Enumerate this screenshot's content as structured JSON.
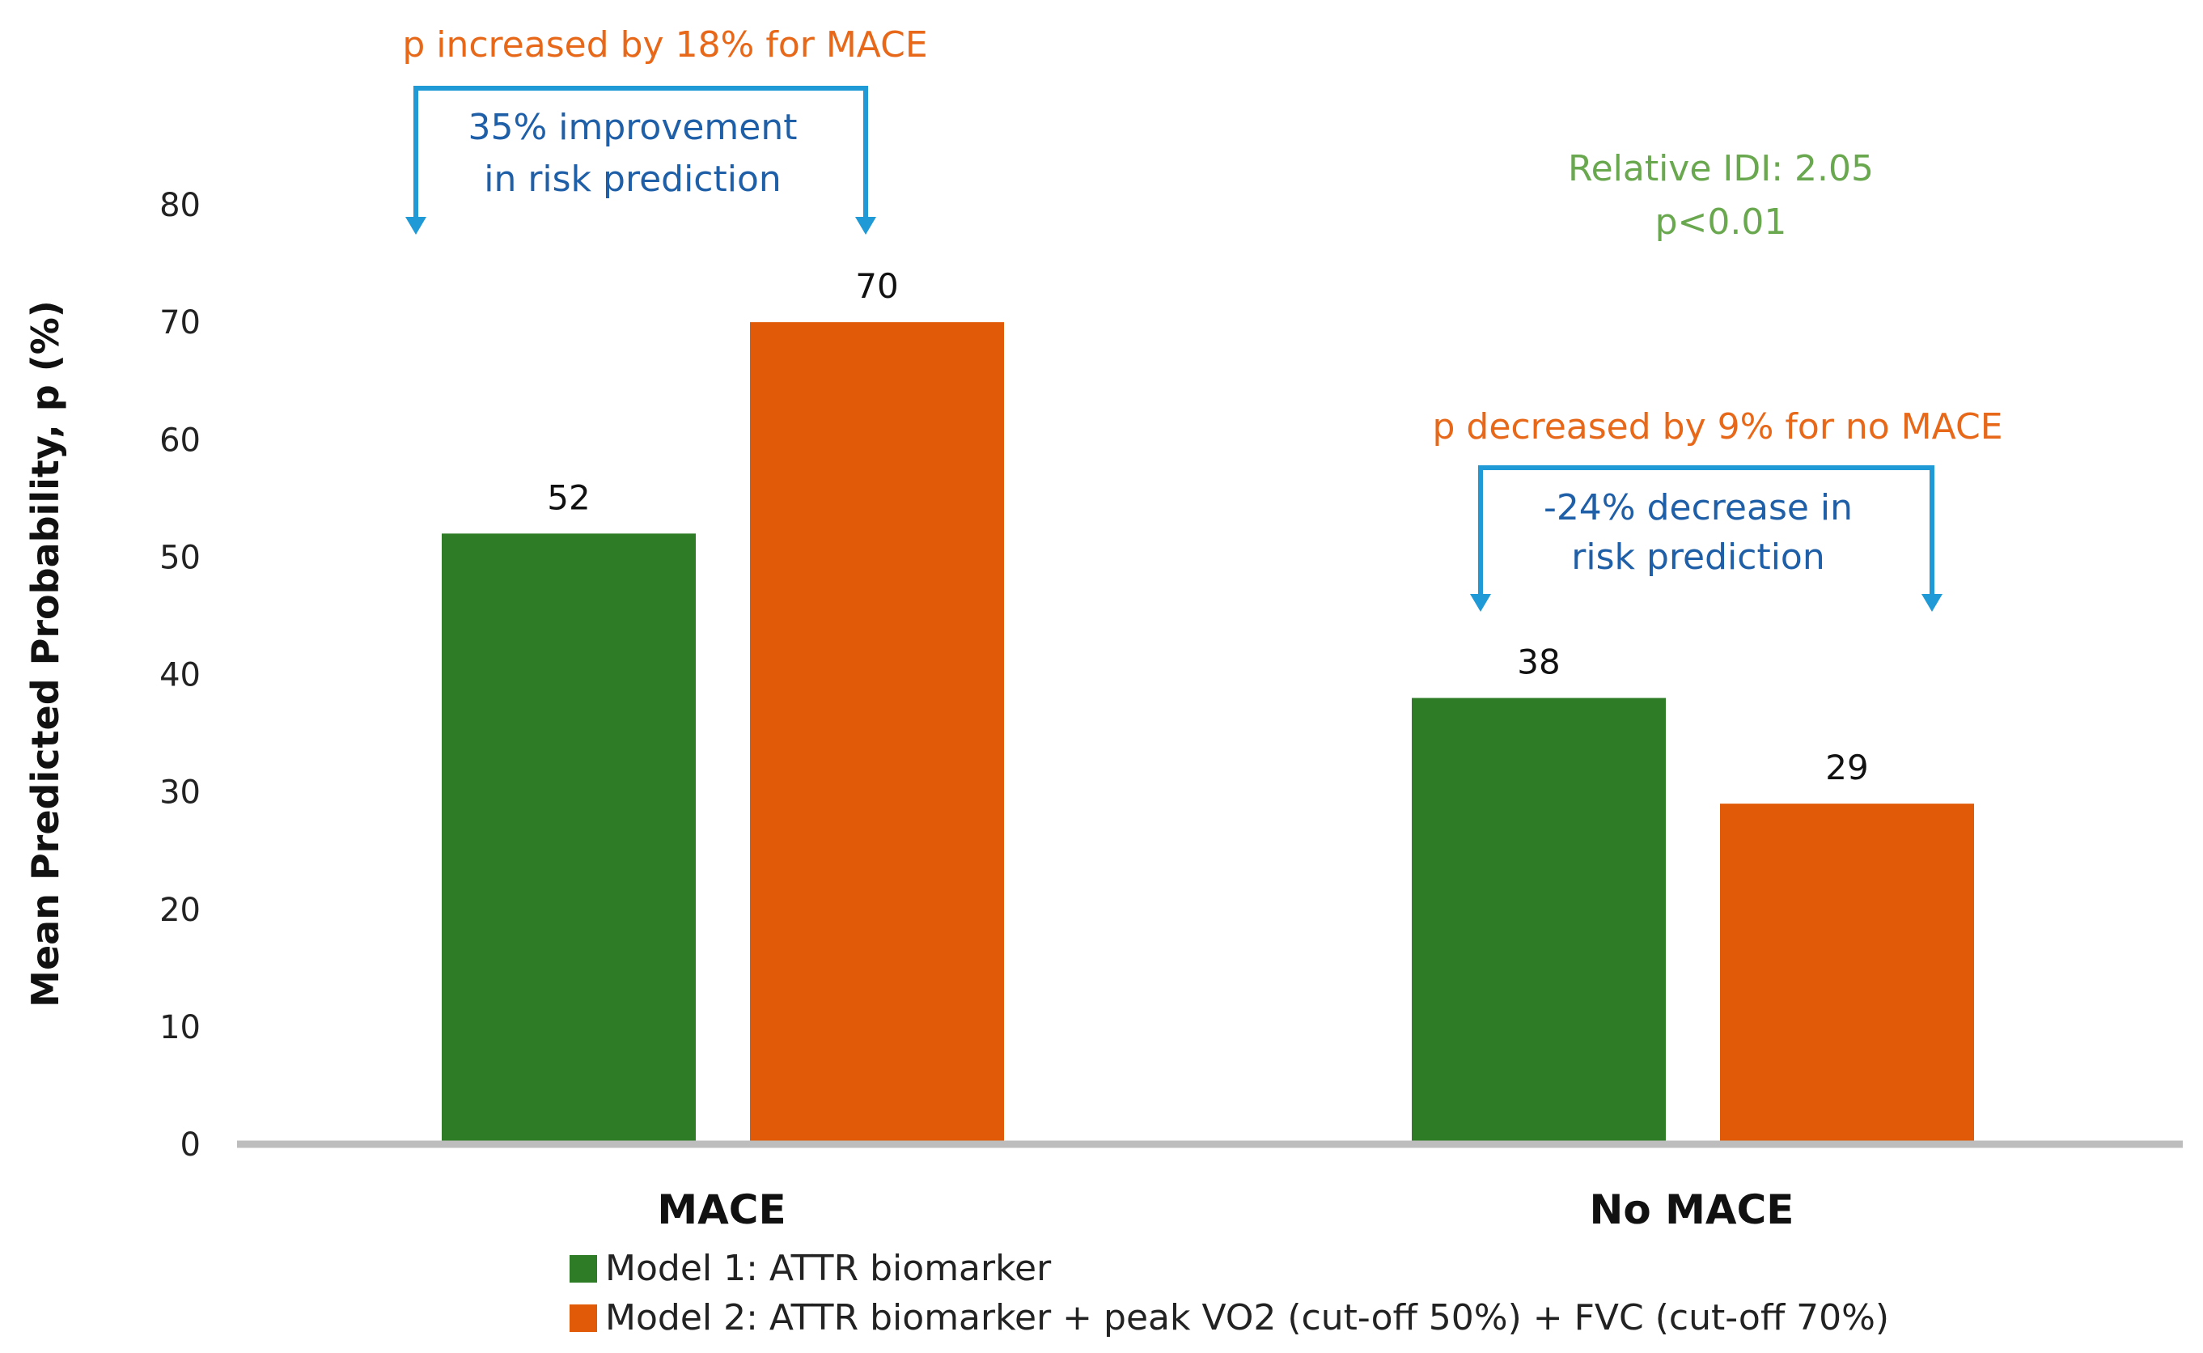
{
  "chart_data": {
    "type": "bar",
    "title": "",
    "xlabel": "",
    "ylabel": "Mean Predicted Probability, p (%)",
    "ylim": [
      0,
      80
    ],
    "yticks": [
      0,
      10,
      20,
      30,
      40,
      50,
      60,
      70,
      80
    ],
    "grid": false,
    "categories": [
      "MACE",
      "No MACE"
    ],
    "series": [
      {
        "name": "Model 1: ATTR biomarker",
        "color": "#2e7d26",
        "values": [
          52,
          38
        ]
      },
      {
        "name": "Model 2: ATTR biomarker + peak VO2 (cut-off 50%) + FVC (cut-off 70%)",
        "color": "#e05a07",
        "values": [
          70,
          29
        ]
      }
    ],
    "legend_position": "bottom",
    "annotations": {
      "mace_change": "p increased by 18% for MACE",
      "mace_improvement_line1": "35% improvement",
      "mace_improvement_line2": "in risk prediction",
      "idi_line1": "Relative IDI: 2.05",
      "idi_line2": "p<0.01",
      "no_mace_change": "p decreased by 9% for no MACE",
      "no_mace_decrease_line1": "-24% decrease in",
      "no_mace_decrease_line2": "risk prediction"
    },
    "colors": {
      "annotation_orange": "#e8681a",
      "annotation_blue": "#1f5fa8",
      "annotation_green": "#6aa84f",
      "arrow_blue": "#1f9ad6",
      "axis": "#bdbdbd"
    }
  }
}
